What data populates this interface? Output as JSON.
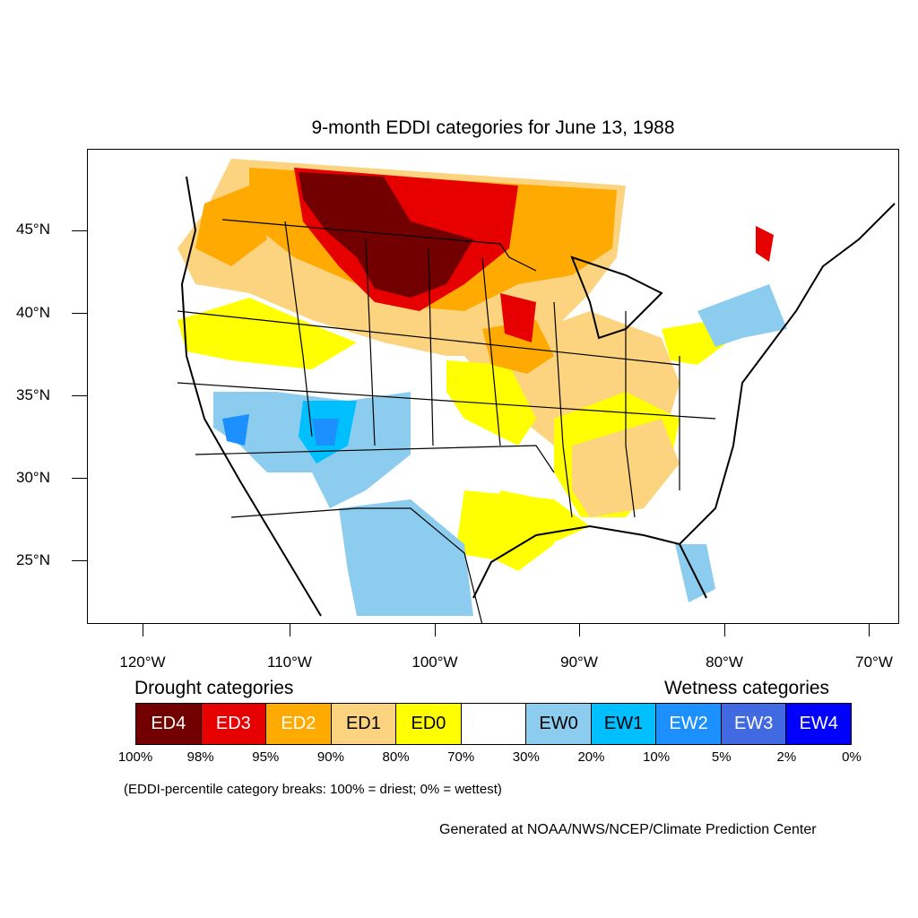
{
  "title": "9-month EDDI categories for June 13, 1988",
  "axes": {
    "lat_labels": [
      "45°N",
      "40°N",
      "35°N",
      "30°N",
      "25°N"
    ],
    "lon_labels": [
      "120°W",
      "110°W",
      "100°W",
      "90°W",
      "80°W",
      "70°W"
    ]
  },
  "legend": {
    "drought_heading": "Drought categories",
    "wetness_heading": "Wetness categories",
    "categories": [
      {
        "label": "ED4",
        "color": "#730000",
        "text_color": "#ffffff"
      },
      {
        "label": "ED3",
        "color": "#e60000",
        "text_color": "#ffffff"
      },
      {
        "label": "ED2",
        "color": "#ffaa00",
        "text_color": "#ffffff"
      },
      {
        "label": "ED1",
        "color": "#fcd37f",
        "text_color": "#000000"
      },
      {
        "label": "ED0",
        "color": "#ffff00",
        "text_color": "#000000"
      },
      {
        "label": "",
        "color": "#ffffff",
        "text_color": "#000000"
      },
      {
        "label": "EW0",
        "color": "#8ccdef",
        "text_color": "#000000"
      },
      {
        "label": "EW1",
        "color": "#00bfff",
        "text_color": "#000000"
      },
      {
        "label": "EW2",
        "color": "#1d90ff",
        "text_color": "#ffffff"
      },
      {
        "label": "EW3",
        "color": "#4169e1",
        "text_color": "#ffffff"
      },
      {
        "label": "EW4",
        "color": "#0000ff",
        "text_color": "#ffffff"
      }
    ],
    "percentiles": [
      "100%",
      "98%",
      "95%",
      "90%",
      "80%",
      "70%",
      "30%",
      "20%",
      "10%",
      "5%",
      "2%",
      "0%"
    ]
  },
  "note": "(EDDI-percentile category breaks: 100% = driest; 0% = wettest)",
  "credit": "Generated at NOAA/NWS/NCEP/Climate Prediction Center"
}
